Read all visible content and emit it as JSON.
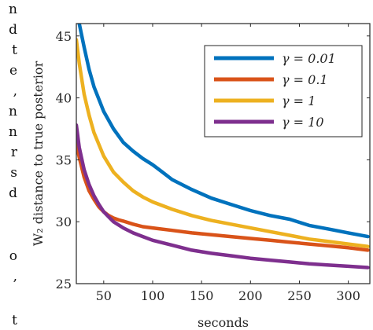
{
  "page": {
    "margin_fragments": [
      "n",
      "d",
      "t",
      "e",
      ",",
      "n",
      "n",
      "r",
      "s",
      "d",
      "",
      "o",
      ",",
      "t"
    ]
  },
  "chart_data": {
    "type": "line",
    "xlabel": "seconds",
    "ylabel": "W₂ distance to true posterior",
    "xlim": [
      22,
      322
    ],
    "ylim": [
      25,
      46
    ],
    "xticks": [
      50,
      100,
      150,
      200,
      250,
      300
    ],
    "yticks": [
      25,
      30,
      35,
      40,
      45
    ],
    "grid": false,
    "legend_position": "top-right",
    "series": [
      {
        "name": "γ = 0.01",
        "color": "#0072BD",
        "x": [
          22,
          25,
          30,
          35,
          40,
          50,
          60,
          70,
          80,
          90,
          100,
          110,
          120,
          140,
          160,
          180,
          200,
          220,
          240,
          260,
          280,
          300,
          320
        ],
        "y": [
          48.5,
          46.0,
          44.1,
          42.3,
          40.9,
          38.9,
          37.5,
          36.4,
          35.7,
          35.1,
          34.6,
          34.0,
          33.4,
          32.6,
          31.9,
          31.4,
          30.9,
          30.5,
          30.2,
          29.7,
          29.4,
          29.1,
          28.8
        ]
      },
      {
        "name": "γ = 0.1",
        "color": "#D95319",
        "x": [
          22,
          25,
          30,
          35,
          40,
          45,
          50,
          55,
          60,
          65,
          70,
          80,
          90,
          100,
          120,
          140,
          160,
          180,
          200,
          220,
          240,
          260,
          280,
          300,
          320
        ],
        "y": [
          36.3,
          35.2,
          33.6,
          32.5,
          31.8,
          31.2,
          30.8,
          30.5,
          30.3,
          30.15,
          30.05,
          29.8,
          29.6,
          29.5,
          29.3,
          29.1,
          28.95,
          28.8,
          28.65,
          28.5,
          28.35,
          28.2,
          28.05,
          27.9,
          27.7
        ]
      },
      {
        "name": "γ = 1",
        "color": "#EDB120",
        "x": [
          22,
          25,
          30,
          35,
          40,
          50,
          60,
          70,
          80,
          90,
          100,
          120,
          140,
          160,
          180,
          200,
          220,
          240,
          260,
          280,
          300,
          320
        ],
        "y": [
          44.7,
          42.8,
          40.3,
          38.6,
          37.2,
          35.3,
          34.0,
          33.2,
          32.5,
          32.0,
          31.6,
          31.0,
          30.5,
          30.1,
          29.8,
          29.5,
          29.2,
          28.9,
          28.6,
          28.4,
          28.2,
          28.0
        ]
      },
      {
        "name": "γ = 10",
        "color": "#7E2F8E",
        "x": [
          22,
          25,
          30,
          35,
          40,
          45,
          50,
          55,
          60,
          70,
          80,
          90,
          100,
          120,
          140,
          160,
          180,
          200,
          220,
          240,
          260,
          280,
          300,
          320
        ],
        "y": [
          37.8,
          36.0,
          34.2,
          33.0,
          32.1,
          31.4,
          30.8,
          30.4,
          30.0,
          29.5,
          29.1,
          28.8,
          28.5,
          28.1,
          27.7,
          27.45,
          27.25,
          27.05,
          26.9,
          26.75,
          26.6,
          26.5,
          26.4,
          26.3
        ]
      }
    ]
  }
}
